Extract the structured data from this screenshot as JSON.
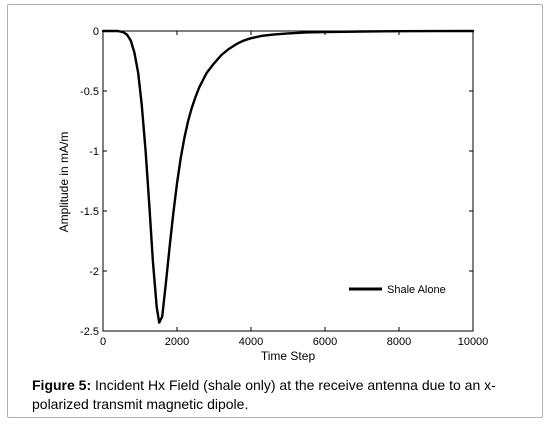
{
  "caption": {
    "label": "Figure 5:",
    "text": " Incident Hx Field (shale only) at the receive antenna due to an x-polarized transmit magnetic dipole."
  },
  "chart_data": {
    "type": "line",
    "title": "",
    "xlabel": "Time Step",
    "ylabel": "Amplitude in mA/m",
    "xlim": [
      0,
      10000
    ],
    "ylim": [
      -2.5,
      0
    ],
    "xticks": [
      0,
      2000,
      4000,
      6000,
      8000,
      10000
    ],
    "yticks": [
      0,
      -0.5,
      -1,
      -1.5,
      -2,
      -2.5
    ],
    "xtick_labels": [
      "0",
      "2000",
      "4000",
      "6000",
      "8000",
      "10000"
    ],
    "ytick_labels": [
      "0",
      "-0.5",
      "-1",
      "-1.5",
      "-2",
      "-2.5"
    ],
    "grid": false,
    "legend_position": "bottom-right",
    "series": [
      {
        "name": "Shale Alone",
        "color": "#000000",
        "x": [
          0,
          400,
          550,
          650,
          750,
          850,
          950,
          1050,
          1150,
          1250,
          1350,
          1450,
          1520,
          1600,
          1700,
          1800,
          1900,
          2000,
          2100,
          2200,
          2300,
          2400,
          2500,
          2600,
          2800,
          3000,
          3200,
          3400,
          3600,
          3800,
          4000,
          4300,
          4600,
          5000,
          5500,
          6000,
          7000,
          8000,
          9000,
          10000
        ],
        "y": [
          0,
          0,
          -0.01,
          -0.03,
          -0.08,
          -0.18,
          -0.35,
          -0.62,
          -1.0,
          -1.45,
          -1.92,
          -2.3,
          -2.43,
          -2.38,
          -2.1,
          -1.8,
          -1.52,
          -1.27,
          -1.06,
          -0.89,
          -0.75,
          -0.64,
          -0.55,
          -0.47,
          -0.35,
          -0.27,
          -0.2,
          -0.15,
          -0.11,
          -0.08,
          -0.06,
          -0.04,
          -0.03,
          -0.02,
          -0.012,
          -0.008,
          -0.004,
          -0.002,
          -0.001,
          0
        ]
      }
    ]
  }
}
